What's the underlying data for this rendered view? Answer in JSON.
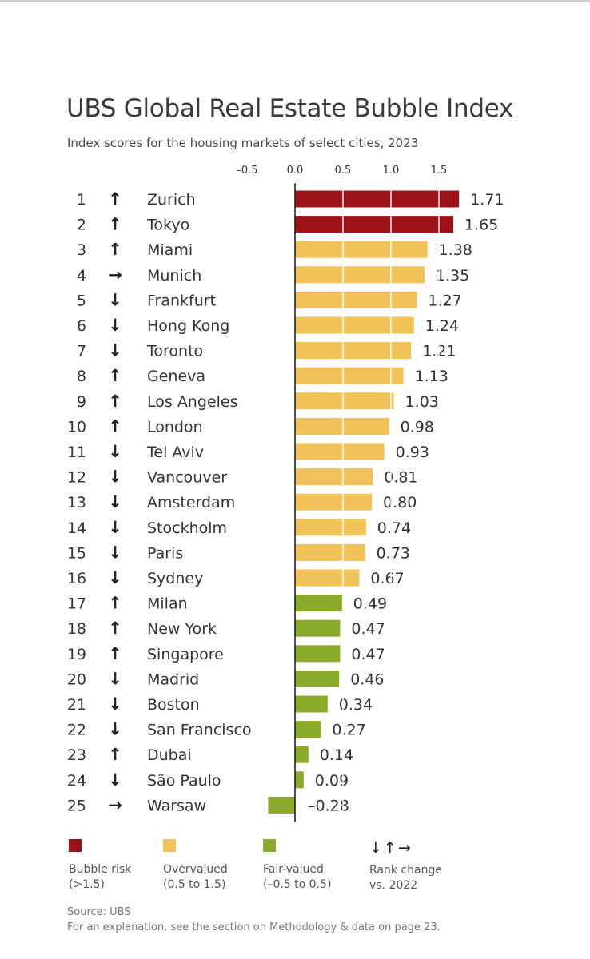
{
  "title": "UBS Global Real Estate Bubble Index",
  "subtitle": "Index scores for the housing markets of select cities, 2023",
  "colors": {
    "bubble_risk": "#9b1218",
    "overvalued": "#f1c25a",
    "fair_valued": "#8caa2b",
    "axis": "#222222"
  },
  "chart_data": {
    "type": "bar",
    "orientation": "horizontal",
    "xlim": [
      -0.5,
      1.75
    ],
    "x_ticks": [
      -0.5,
      0.0,
      0.5,
      1.0,
      1.5
    ],
    "x_tick_labels": [
      "–0.5",
      "0.0",
      "0.5",
      "1.0",
      "1.5"
    ],
    "grid": "white vertical lines at 0.5, 1.0, 1.5 over bars",
    "rows": [
      {
        "rank": "1",
        "change": "up",
        "city": "Zurich",
        "value": 1.71,
        "label": "1.71",
        "category": "bubble_risk"
      },
      {
        "rank": "2",
        "change": "up",
        "city": "Tokyo",
        "value": 1.65,
        "label": "1.65",
        "category": "bubble_risk"
      },
      {
        "rank": "3",
        "change": "up",
        "city": "Miami",
        "value": 1.38,
        "label": "1.38",
        "category": "overvalued"
      },
      {
        "rank": "4",
        "change": "same",
        "city": "Munich",
        "value": 1.35,
        "label": "1.35",
        "category": "overvalued"
      },
      {
        "rank": "5",
        "change": "down",
        "city": "Frankfurt",
        "value": 1.27,
        "label": "1.27",
        "category": "overvalued"
      },
      {
        "rank": "6",
        "change": "down",
        "city": "Hong Kong",
        "value": 1.24,
        "label": "1.24",
        "category": "overvalued"
      },
      {
        "rank": "7",
        "change": "down",
        "city": "Toronto",
        "value": 1.21,
        "label": "1.21",
        "category": "overvalued"
      },
      {
        "rank": "8",
        "change": "up",
        "city": "Geneva",
        "value": 1.13,
        "label": "1.13",
        "category": "overvalued"
      },
      {
        "rank": "9",
        "change": "up",
        "city": "Los Angeles",
        "value": 1.03,
        "label": "1.03",
        "category": "overvalued"
      },
      {
        "rank": "10",
        "change": "up",
        "city": "London",
        "value": 0.98,
        "label": "0.98",
        "category": "overvalued"
      },
      {
        "rank": "11",
        "change": "down",
        "city": "Tel Aviv",
        "value": 0.93,
        "label": "0.93",
        "category": "overvalued"
      },
      {
        "rank": "12",
        "change": "down",
        "city": "Vancouver",
        "value": 0.81,
        "label": "0.81",
        "category": "overvalued"
      },
      {
        "rank": "13",
        "change": "down",
        "city": "Amsterdam",
        "value": 0.8,
        "label": "0.80",
        "category": "overvalued"
      },
      {
        "rank": "14",
        "change": "down",
        "city": "Stockholm",
        "value": 0.74,
        "label": "0.74",
        "category": "overvalued"
      },
      {
        "rank": "15",
        "change": "down",
        "city": "Paris",
        "value": 0.73,
        "label": "0.73",
        "category": "overvalued"
      },
      {
        "rank": "16",
        "change": "down",
        "city": "Sydney",
        "value": 0.67,
        "label": "0.67",
        "category": "overvalued"
      },
      {
        "rank": "17",
        "change": "up",
        "city": "Milan",
        "value": 0.49,
        "label": "0.49",
        "category": "fair_valued"
      },
      {
        "rank": "18",
        "change": "up",
        "city": "New York",
        "value": 0.47,
        "label": "0.47",
        "category": "fair_valued"
      },
      {
        "rank": "19",
        "change": "up",
        "city": "Singapore",
        "value": 0.47,
        "label": "0.47",
        "category": "fair_valued"
      },
      {
        "rank": "20",
        "change": "down",
        "city": "Madrid",
        "value": 0.46,
        "label": "0.46",
        "category": "fair_valued"
      },
      {
        "rank": "21",
        "change": "down",
        "city": "Boston",
        "value": 0.34,
        "label": "0.34",
        "category": "fair_valued"
      },
      {
        "rank": "22",
        "change": "down",
        "city": "San Francisco",
        "value": 0.27,
        "label": "0.27",
        "category": "fair_valued"
      },
      {
        "rank": "23",
        "change": "up",
        "city": "Dubai",
        "value": 0.14,
        "label": "0.14",
        "category": "fair_valued"
      },
      {
        "rank": "24",
        "change": "down",
        "city": "São Paulo",
        "value": 0.09,
        "label": "0.09",
        "category": "fair_valued"
      },
      {
        "rank": "25",
        "change": "same",
        "city": "Warsaw",
        "value": -0.28,
        "label": "–0.28",
        "category": "fair_valued"
      }
    ]
  },
  "legend": {
    "bubble_risk": {
      "line1": "Bubble risk",
      "line2": "(>1.5)"
    },
    "overvalued": {
      "line1": "Overvalued",
      "line2": "(0.5 to 1.5)"
    },
    "fair_valued": {
      "line1": "Fair-valued",
      "line2": "(–0.5 to 0.5)"
    },
    "rank_change": {
      "arrows": "↓↑→",
      "line1": "Rank change",
      "line2": "vs. 2022"
    }
  },
  "source": {
    "line1": "Source: UBS",
    "line2": "For an explanation, see the section on Methodology & data on page 23."
  }
}
